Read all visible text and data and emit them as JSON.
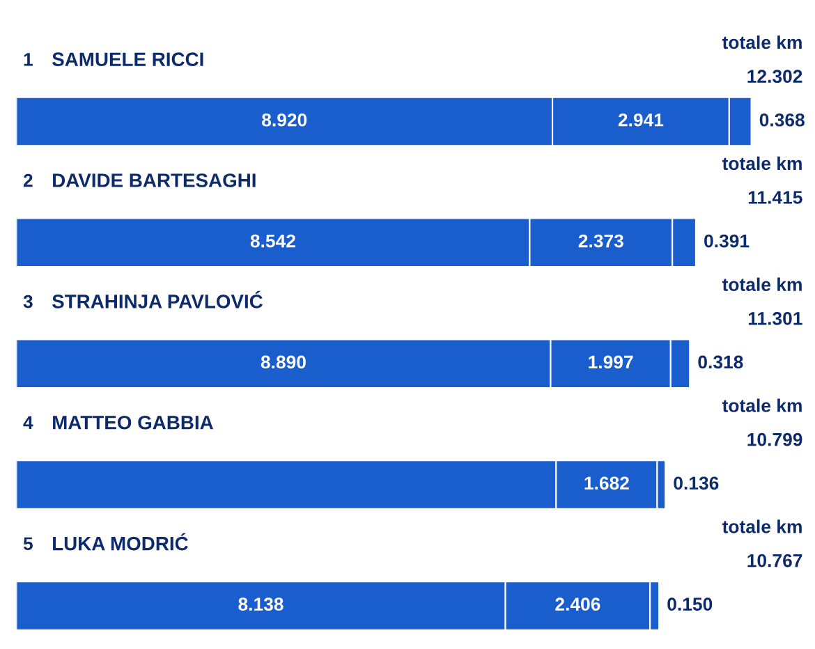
{
  "chart_data": {
    "type": "bar",
    "orientation": "horizontal",
    "stacked": true,
    "data_labels": true,
    "categories": [
      "SAMUELE RICCI",
      "DAVIDE BARTESAGHI",
      "STRAHINJA PAVLOVIĆ",
      "MATTEO GABBIA",
      "LUKA MODRIĆ"
    ],
    "series": [
      {
        "color": "#1a5dcc",
        "values": [
          8.92,
          8.542,
          8.89,
          8.981,
          8.138
        ],
        "value_labels": [
          "8.920",
          "8.542",
          "8.890",
          null,
          "8.138"
        ]
      },
      {
        "color": "#1a5dcc",
        "values": [
          2.941,
          2.373,
          1.997,
          1.682,
          2.406
        ],
        "value_labels": [
          "2.941",
          "2.373",
          "1.997",
          "1.682",
          "2.406"
        ]
      },
      {
        "color": "#1a5dcc",
        "values": [
          0.368,
          0.391,
          0.318,
          0.136,
          0.15
        ],
        "value_labels": [
          "0.368",
          "0.391",
          "0.318",
          "0.136",
          "0.150"
        ]
      }
    ],
    "annotations": [
      "1",
      "totale km",
      "12.302",
      "2",
      "totale km",
      "11.415",
      "3",
      "totale km",
      "11.301",
      "4",
      "totale km",
      "10.799",
      "5",
      "totale km",
      "10.767"
    ]
  }
}
